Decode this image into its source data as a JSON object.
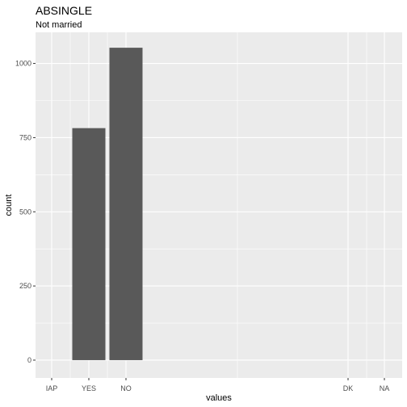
{
  "chart_data": {
    "type": "bar",
    "title": "ABSINGLE",
    "subtitle": "Not married",
    "xlabel": "values",
    "ylabel": "count",
    "categories": [
      "IAP",
      "YES",
      "NO",
      "DK",
      "NA"
    ],
    "values": [
      0,
      782,
      1053,
      0,
      0
    ],
    "yticks": [
      0,
      250,
      500,
      750,
      1000
    ],
    "ylim": [
      -60,
      1105
    ],
    "grid": true,
    "colors": {
      "bar": "#595959",
      "panel": "#ebebeb",
      "grid": "#ffffff"
    }
  }
}
